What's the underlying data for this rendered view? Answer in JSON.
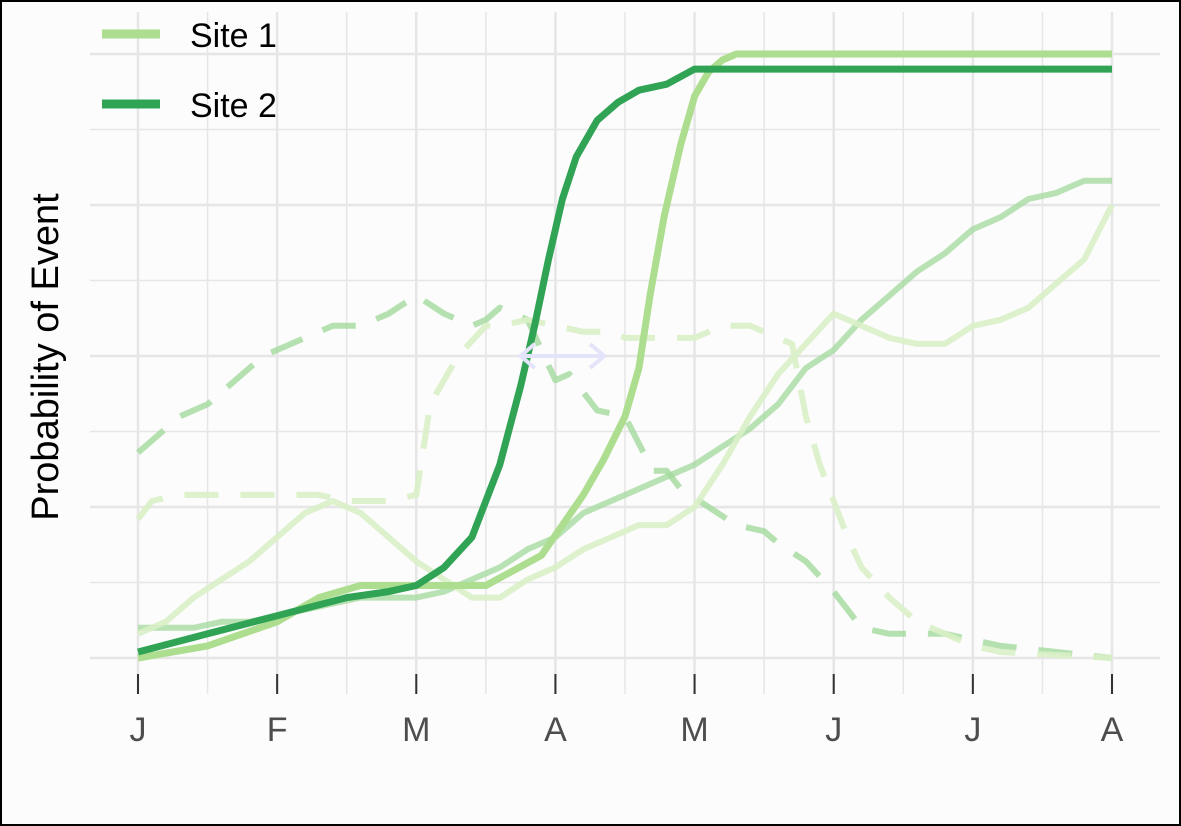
{
  "chart_data": {
    "type": "line",
    "title": "",
    "xlabel": "",
    "ylabel": "Probability of Event",
    "x_ticks": [
      "J",
      "F",
      "M",
      "A",
      "M",
      "J",
      "J",
      "A"
    ],
    "xlim": [
      0,
      7.1
    ],
    "ylim": [
      -0.02,
      1.02
    ],
    "grid": true,
    "legend_position": "top-left",
    "colors": {
      "site1": "#addd8e",
      "site2": "#31a354",
      "site2_background": "#a1d99b",
      "site1_background": "#d9f0c7",
      "arrow": "#e3e3fa",
      "grid": "#e6e6e6"
    },
    "series": [
      {
        "name": "Site 1",
        "style": "solid-light",
        "x": [
          0,
          0.5,
          1.0,
          1.3,
          1.6,
          2.0,
          2.5,
          2.9,
          3.2,
          3.35,
          3.5,
          3.6,
          3.68,
          3.78,
          3.9,
          4.0,
          4.1,
          4.2,
          4.3,
          7.0
        ],
        "y": [
          0,
          0.02,
          0.06,
          0.1,
          0.12,
          0.12,
          0.12,
          0.17,
          0.27,
          0.33,
          0.4,
          0.48,
          0.6,
          0.73,
          0.85,
          0.93,
          0.97,
          0.99,
          1.0,
          1.0
        ]
      },
      {
        "name": "Site 2",
        "style": "solid-dark",
        "x": [
          0,
          0.5,
          1.0,
          1.5,
          1.8,
          2.0,
          2.2,
          2.4,
          2.6,
          2.75,
          2.85,
          2.95,
          3.05,
          3.15,
          3.3,
          3.45,
          3.6,
          3.8,
          4.0,
          7.0
        ],
        "y": [
          0.01,
          0.04,
          0.07,
          0.1,
          0.11,
          0.12,
          0.15,
          0.2,
          0.32,
          0.45,
          0.55,
          0.66,
          0.76,
          0.83,
          0.89,
          0.92,
          0.94,
          0.95,
          0.975,
          0.975
        ]
      },
      {
        "style": "dashed-dark",
        "x": [
          0,
          0.3,
          0.5,
          0.6,
          0.7,
          0.9,
          1.1,
          1.3,
          1.4,
          1.6,
          1.8,
          2.0,
          2.2,
          2.4,
          2.5,
          2.6,
          2.8,
          3.0,
          3.1,
          3.3,
          3.5,
          3.7,
          3.8,
          3.9,
          4.1,
          4.3,
          4.5,
          4.6,
          4.8,
          5.0,
          5.2,
          5.4,
          5.8,
          6.2,
          6.6,
          7.0
        ],
        "y": [
          0.34,
          0.4,
          0.42,
          0.44,
          0.46,
          0.5,
          0.52,
          0.54,
          0.55,
          0.55,
          0.57,
          0.6,
          0.57,
          0.55,
          0.56,
          0.58,
          0.56,
          0.46,
          0.47,
          0.41,
          0.4,
          0.31,
          0.31,
          0.28,
          0.25,
          0.22,
          0.21,
          0.19,
          0.16,
          0.11,
          0.05,
          0.04,
          0.04,
          0.02,
          0.01,
          0.0
        ]
      },
      {
        "style": "dashed-light",
        "x": [
          0,
          0.1,
          0.3,
          0.5,
          0.7,
          0.9,
          1.1,
          1.3,
          1.5,
          1.6,
          1.8,
          2.0,
          2.1,
          2.3,
          2.5,
          2.6,
          2.8,
          3.0,
          3.2,
          3.4,
          3.5,
          3.6,
          3.8,
          4.0,
          4.2,
          4.4,
          4.5,
          4.6,
          4.7,
          4.8,
          4.9,
          5.0,
          5.1,
          5.2,
          5.4,
          5.6,
          5.8,
          6.0,
          6.2,
          7.0
        ],
        "y": [
          0.23,
          0.26,
          0.27,
          0.27,
          0.27,
          0.27,
          0.27,
          0.27,
          0.26,
          0.26,
          0.26,
          0.27,
          0.42,
          0.5,
          0.55,
          0.55,
          0.56,
          0.55,
          0.54,
          0.54,
          0.53,
          0.53,
          0.53,
          0.53,
          0.55,
          0.55,
          0.54,
          0.53,
          0.52,
          0.4,
          0.32,
          0.26,
          0.2,
          0.15,
          0.1,
          0.06,
          0.04,
          0.02,
          0.01,
          0.0
        ]
      },
      {
        "style": "solid-background-dark",
        "x": [
          0,
          0.2,
          0.4,
          0.6,
          0.8,
          1.0,
          1.2,
          1.4,
          1.6,
          1.8,
          2.0,
          2.2,
          2.4,
          2.6,
          2.8,
          3.0,
          3.2,
          3.4,
          3.6,
          3.8,
          4.0,
          4.2,
          4.4,
          4.6,
          4.8,
          5.0,
          5.2,
          5.4,
          5.6,
          5.8,
          6.0,
          6.2,
          6.4,
          6.6,
          6.8,
          7.0
        ],
        "y": [
          0.05,
          0.05,
          0.05,
          0.06,
          0.06,
          0.07,
          0.08,
          0.09,
          0.1,
          0.1,
          0.1,
          0.11,
          0.13,
          0.15,
          0.18,
          0.2,
          0.24,
          0.26,
          0.28,
          0.3,
          0.32,
          0.35,
          0.38,
          0.42,
          0.48,
          0.51,
          0.56,
          0.6,
          0.64,
          0.67,
          0.71,
          0.73,
          0.76,
          0.77,
          0.79,
          0.79
        ]
      },
      {
        "style": "solid-background-light",
        "x": [
          0,
          0.2,
          0.4,
          0.6,
          0.8,
          1.0,
          1.2,
          1.4,
          1.6,
          1.8,
          2.0,
          2.2,
          2.4,
          2.6,
          2.8,
          3.0,
          3.2,
          3.4,
          3.6,
          3.8,
          4.0,
          4.2,
          4.4,
          4.6,
          4.8,
          5.0,
          5.2,
          5.4,
          5.6,
          5.8,
          6.0,
          6.2,
          6.4,
          6.6,
          6.8,
          7.0
        ],
        "y": [
          0.04,
          0.06,
          0.1,
          0.13,
          0.16,
          0.2,
          0.24,
          0.26,
          0.24,
          0.2,
          0.16,
          0.13,
          0.1,
          0.1,
          0.13,
          0.15,
          0.18,
          0.2,
          0.22,
          0.22,
          0.25,
          0.32,
          0.4,
          0.47,
          0.52,
          0.57,
          0.55,
          0.53,
          0.52,
          0.52,
          0.55,
          0.56,
          0.58,
          0.62,
          0.66,
          0.75
        ]
      }
    ],
    "annotations": [
      {
        "type": "double-arrow",
        "x_start": 2.75,
        "x_end": 3.35,
        "y": 0.5
      }
    ]
  }
}
